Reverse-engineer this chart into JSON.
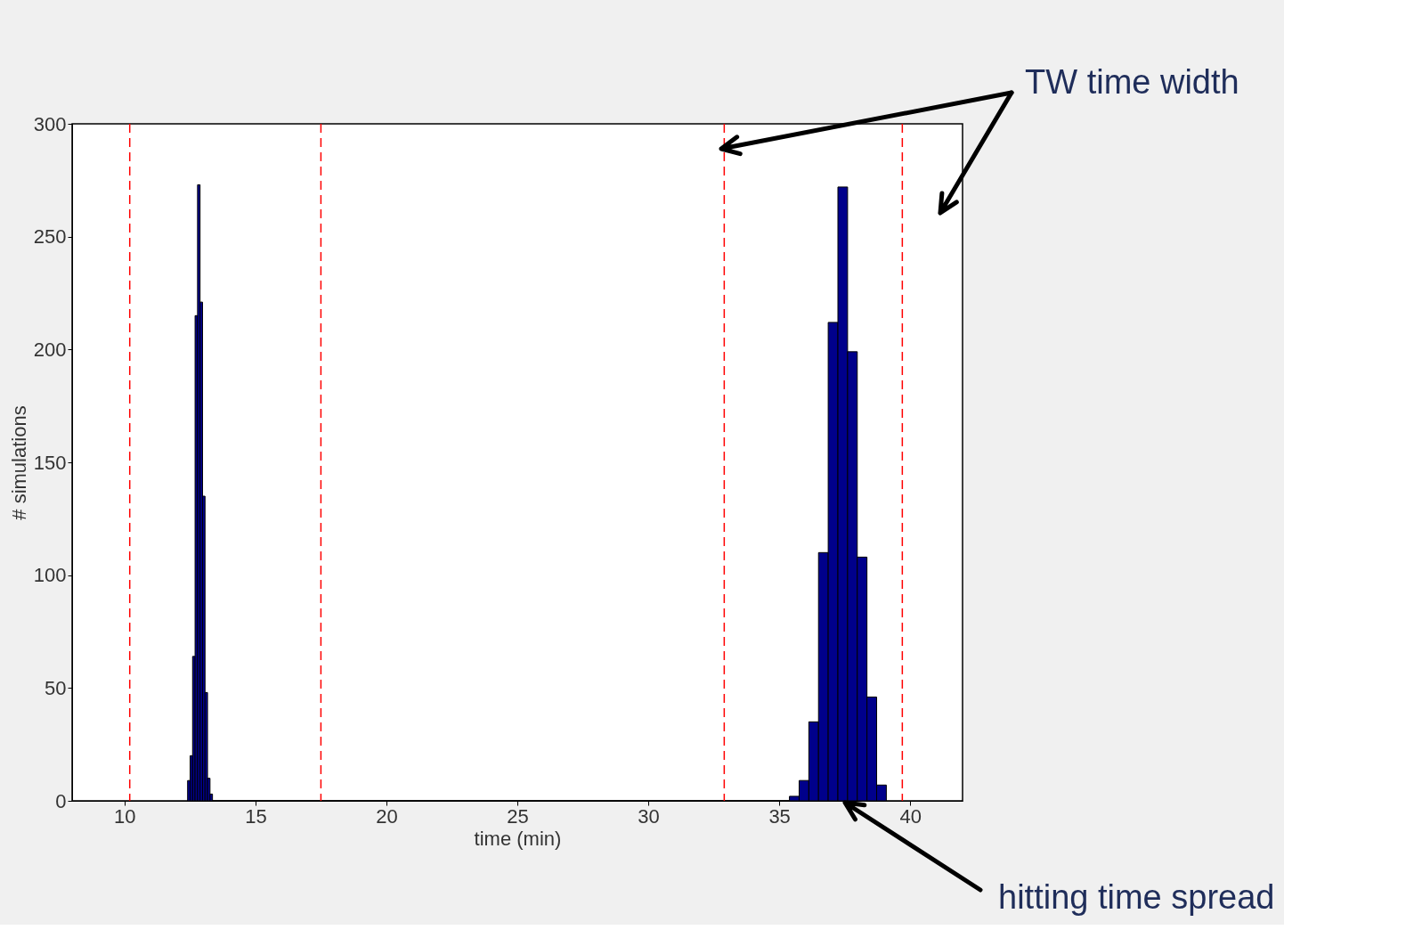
{
  "chart_data": {
    "type": "histogram",
    "xlabel": "time (min)",
    "ylabel": "# simulations",
    "bins": [
      12.41,
      12.505,
      12.6,
      12.695,
      12.79,
      12.885,
      12.98,
      13.075,
      13.17,
      13.265,
      13.36,
      35.39,
      35.76,
      36.13,
      36.5,
      36.87,
      37.24,
      37.61,
      37.98,
      38.35,
      38.72,
      39.09
    ],
    "values": [
      9,
      20,
      64,
      215,
      273,
      221,
      135,
      48,
      10,
      3,
      0,
      2,
      9,
      35,
      110,
      212,
      272,
      199,
      108,
      46,
      7
    ],
    "color": "#00008b",
    "xlim": [
      8,
      42
    ],
    "xticks": [
      10,
      15,
      20,
      25,
      30,
      35,
      40
    ],
    "ylim": [
      0,
      300
    ],
    "yticks": [
      0,
      50,
      100,
      150,
      200,
      250,
      300
    ],
    "grid": false,
    "ref_lines": [
      {
        "axis": "x",
        "value": 10.2,
        "color": "#ff0000",
        "line_style": "dashed"
      },
      {
        "axis": "x",
        "value": 17.5,
        "color": "#ff0000",
        "line_style": "dashed"
      },
      {
        "axis": "x",
        "value": 32.9,
        "color": "#ff0000",
        "line_style": "dashed"
      },
      {
        "axis": "x",
        "value": 39.7,
        "color": "#ff0000",
        "line_style": "dashed"
      }
    ],
    "annotations": [
      "TW time width",
      "hitting time spread"
    ]
  }
}
